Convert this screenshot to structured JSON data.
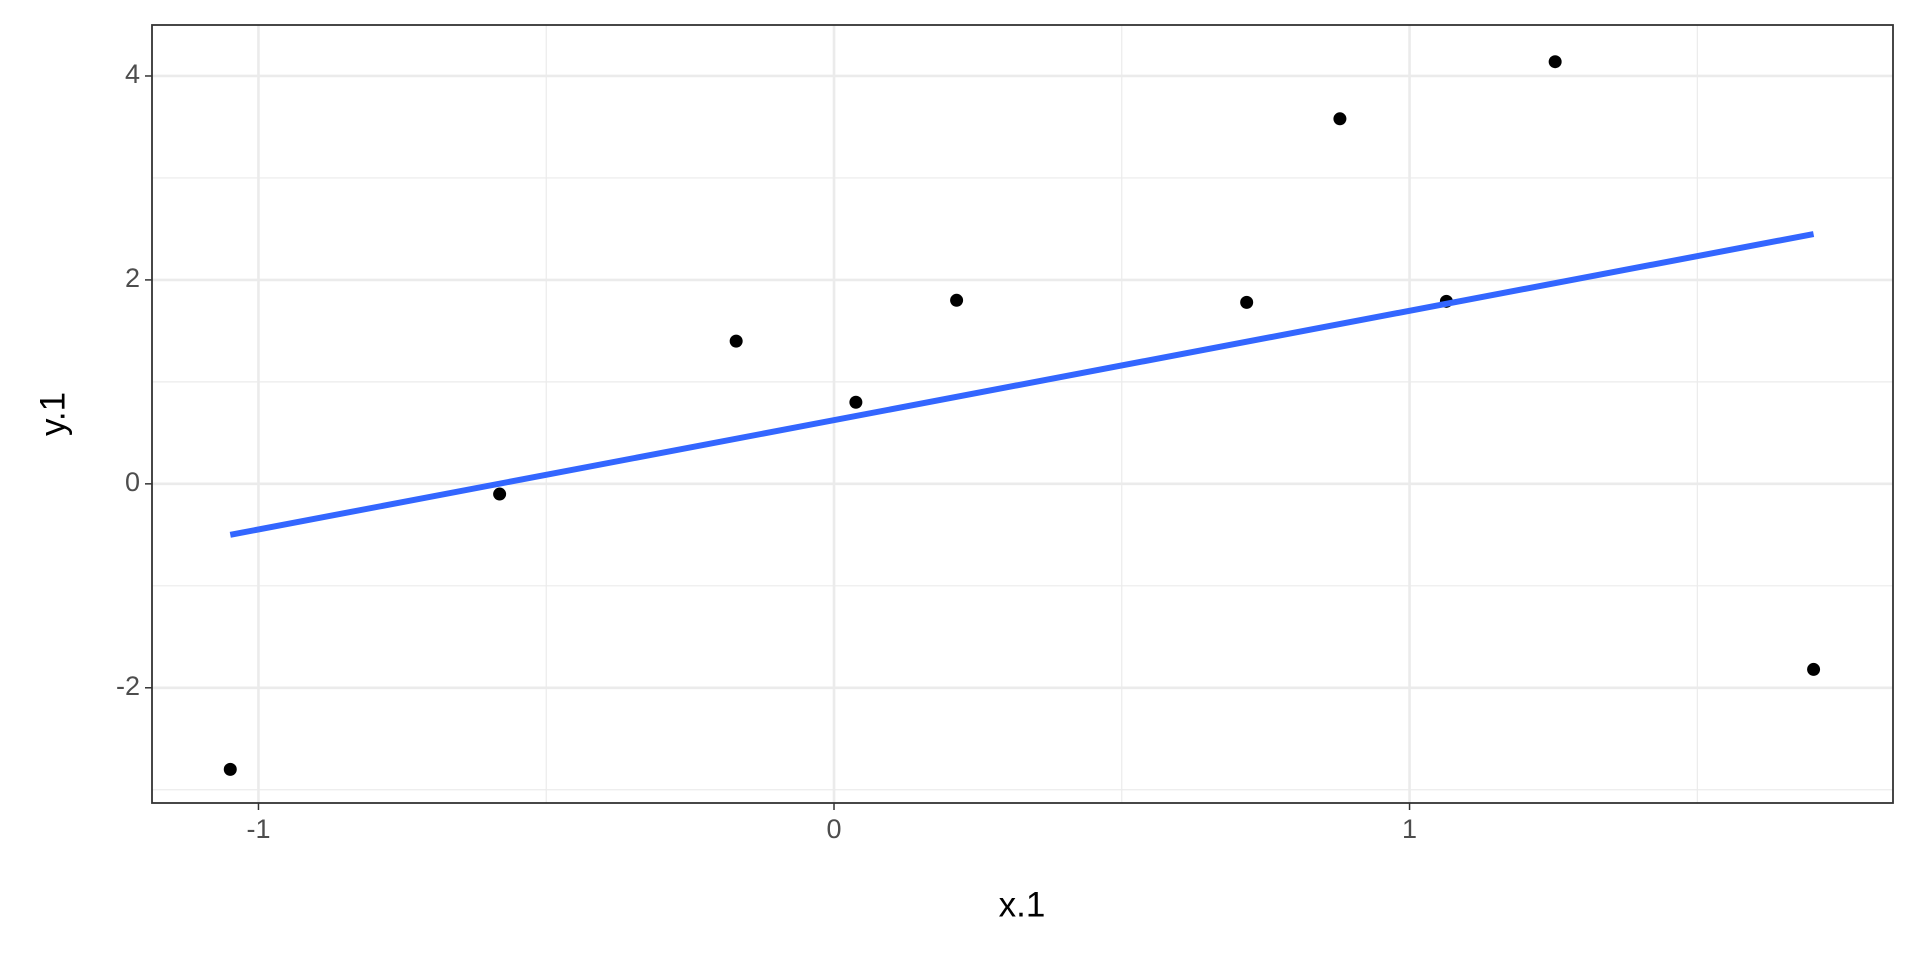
{
  "chart_data": {
    "type": "scatter",
    "x_label": "x.1",
    "y_label": "y.1",
    "points": {
      "color": "#000000",
      "x": [
        -1.049,
        -0.581,
        -0.17,
        0.038,
        0.213,
        0.717,
        0.879,
        1.064,
        1.253,
        1.702
      ],
      "y": [
        -2.8,
        -0.1,
        1.4,
        0.8,
        1.8,
        1.78,
        3.58,
        1.79,
        4.14,
        -1.82
      ]
    },
    "fit": {
      "color": "#3366ff",
      "x": [
        -1.049,
        1.702
      ],
      "y": [
        -0.5,
        2.45
      ]
    },
    "xlim": [
      -1.185,
      1.84
    ],
    "ylim": [
      -3.13,
      4.5
    ],
    "xticks": [
      -1,
      0,
      1
    ],
    "yticks": [
      -2,
      0,
      2,
      4
    ],
    "xminor": [
      -0.5,
      0.5,
      1.5
    ],
    "yminor": [
      -3,
      -1,
      1,
      3
    ],
    "grid": true
  }
}
